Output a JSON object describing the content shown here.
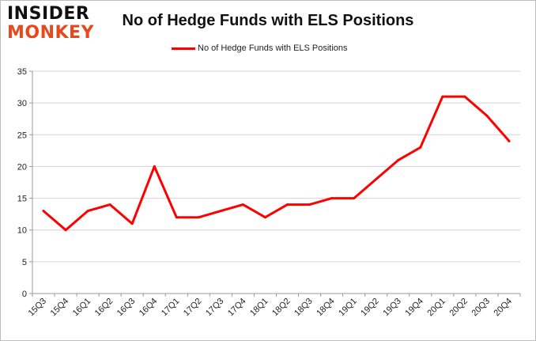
{
  "logo": {
    "line1": "INSIDER",
    "line2": "MONKEY"
  },
  "colors": {
    "line": "#ff0000",
    "grid": "#d4d4d4",
    "axis": "#9a9a9a",
    "logo_accent": "#e8481c"
  },
  "chart_data": {
    "type": "line",
    "title": "No of Hedge Funds with ELS Positions",
    "xlabel": "",
    "ylabel": "",
    "categories": [
      "15Q3",
      "15Q4",
      "16Q1",
      "16Q2",
      "16Q3",
      "16Q4",
      "17Q1",
      "17Q2",
      "17Q3",
      "17Q4",
      "18Q1",
      "18Q2",
      "18Q3",
      "18Q4",
      "19Q1",
      "19Q2",
      "19Q3",
      "19Q4",
      "20Q1",
      "20Q2",
      "20Q3",
      "20Q4"
    ],
    "series": [
      {
        "name": "No of Hedge Funds with ELS Positions",
        "values": [
          13,
          10,
          13,
          14,
          11,
          20,
          12,
          12,
          13,
          14,
          12,
          14,
          14,
          15,
          15,
          18,
          21,
          23,
          31,
          31,
          28,
          24
        ]
      }
    ],
    "ylim": [
      0,
      35
    ],
    "yticks": [
      0,
      5,
      10,
      15,
      20,
      25,
      30,
      35
    ],
    "grid": true,
    "legend_position": "top-center"
  }
}
